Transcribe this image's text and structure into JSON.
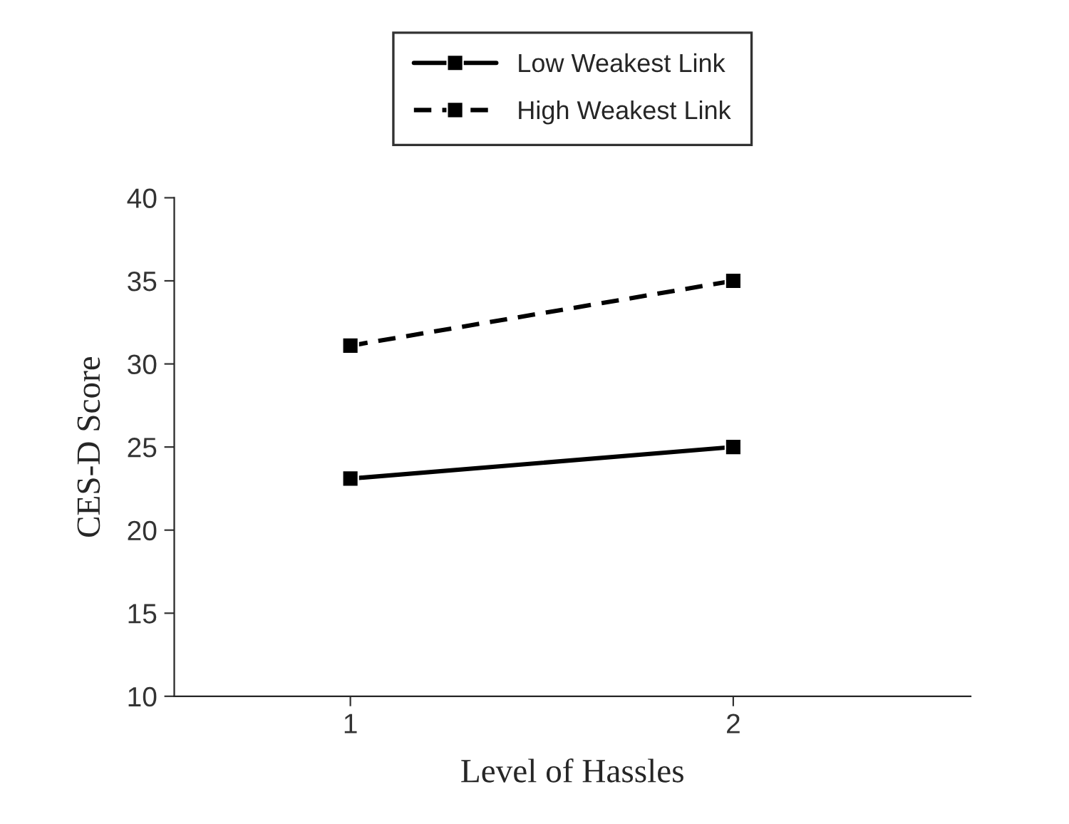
{
  "chart_data": {
    "type": "line",
    "xlabel": "Level of Hassles",
    "ylabel": "CES-D Score",
    "categories": [
      "1",
      "2"
    ],
    "series": [
      {
        "name": "Low Weakest Link",
        "color": "#000000",
        "values": [
          23.1,
          25.0
        ],
        "line_style": "solid"
      },
      {
        "name": "High Weakest Link",
        "color": "#000000",
        "values": [
          31.1,
          35.0
        ],
        "line_style": "dashed"
      }
    ],
    "ylim": [
      10,
      40
    ],
    "yticks": [
      10,
      15,
      20,
      25,
      30,
      35,
      40
    ],
    "grid": false,
    "legend": "top",
    "marker": "square"
  }
}
